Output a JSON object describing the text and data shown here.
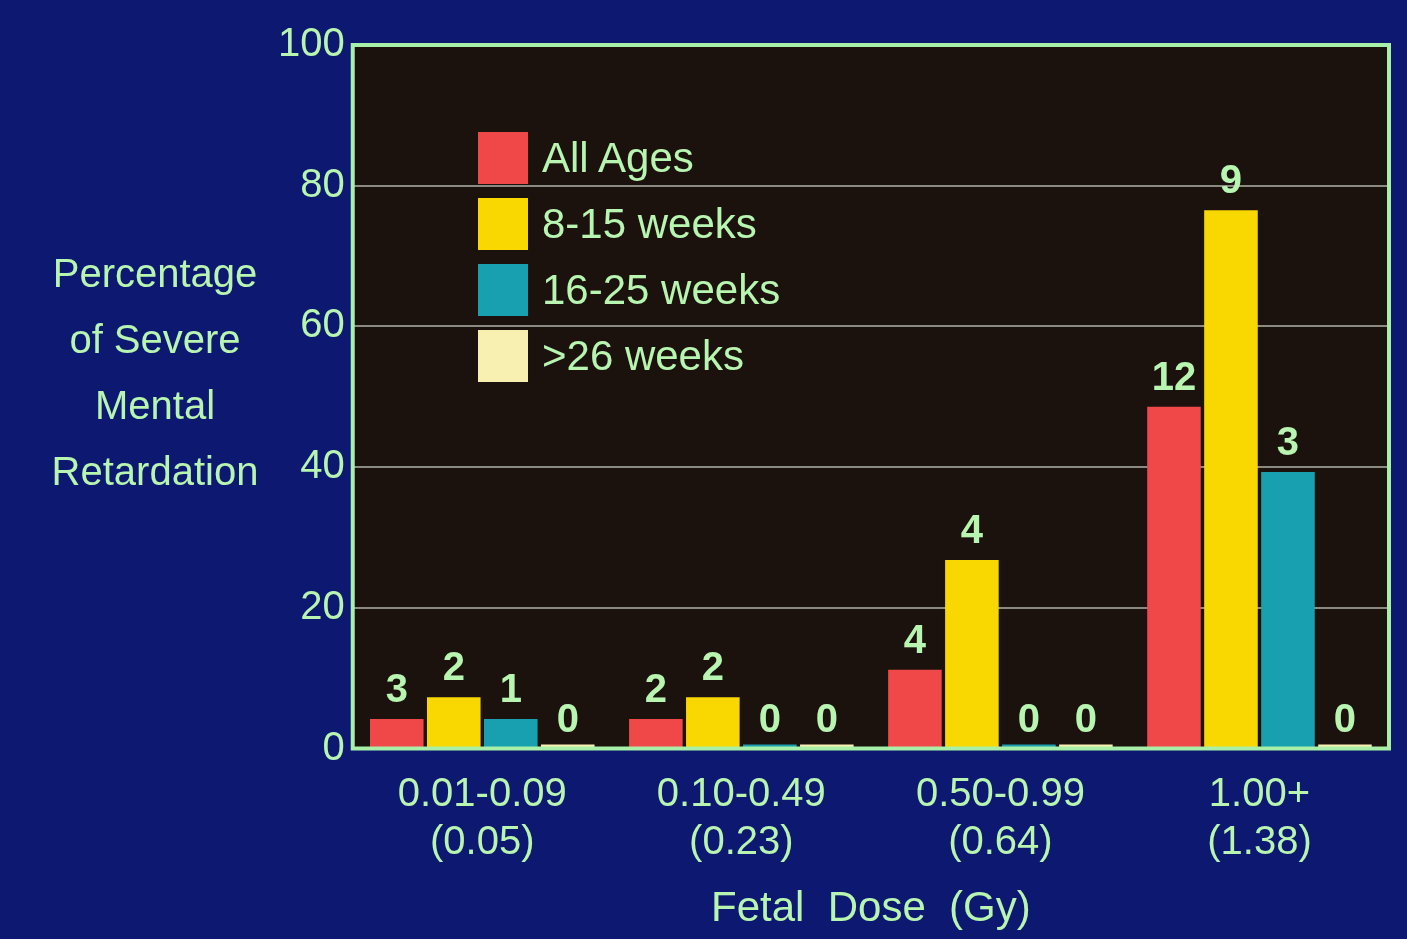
{
  "chart_data": {
    "type": "bar",
    "xlabel": "Fetal  Dose  (Gy)",
    "ylabel": "Percentage of Severe Mental Retardation",
    "categories": [
      "0.01-0.09\n(0.05)",
      "0.10-0.49\n(0.23)",
      "0.50-0.99\n(0.64)",
      "1.00+\n(1.38)"
    ],
    "series": [
      {
        "name": "All  Ages",
        "color": "#f04848",
        "values": [
          4.2,
          4.2,
          11.2,
          48.6
        ]
      },
      {
        "name": "8-15  weeks",
        "color": "#f8d800",
        "values": [
          7.3,
          7.3,
          26.8,
          76.5
        ]
      },
      {
        "name": "16-25  weeks",
        "color": "#18a0b0",
        "values": [
          4.2,
          0,
          0,
          39.3
        ]
      },
      {
        "name": ">26  weeks",
        "color": "#f8f0b0",
        "values": [
          0,
          0,
          0,
          0
        ]
      }
    ],
    "annotations": [
      {
        "text": "3",
        "x": "0.01-0.09\n(0.05)",
        "y": 4.2
      },
      {
        "text": "2",
        "x": "0.01-0.09\n(0.05)",
        "y": 7.3
      },
      {
        "text": "1",
        "x": "0.01-0.09\n(0.05)",
        "y": 4.2
      },
      {
        "text": "0",
        "x": "0.01-0.09\n(0.05)",
        "y": 0
      },
      {
        "text": "2",
        "x": "0.10-0.49\n(0.23)",
        "y": 4.2
      },
      {
        "text": "2",
        "x": "0.10-0.49\n(0.23)",
        "y": 7.3
      },
      {
        "text": "0",
        "x": "0.10-0.49\n(0.23)",
        "y": 0
      },
      {
        "text": "0",
        "x": "0.10-0.49\n(0.23)",
        "y": 0
      },
      {
        "text": "4",
        "x": "0.50-0.99\n(0.64)",
        "y": 11.2
      },
      {
        "text": "4",
        "x": "0.50-0.99\n(0.64)",
        "y": 26.8
      },
      {
        "text": "0",
        "x": "0.50-0.99\n(0.64)",
        "y": 0
      },
      {
        "text": "0",
        "x": "0.50-0.99\n(0.64)",
        "y": 0
      },
      {
        "text": "12",
        "x": "1.00+\n(1.38)",
        "y": 48.6
      },
      {
        "text": "9",
        "x": "1.00+\n(1.38)",
        "y": 76.5
      },
      {
        "text": "3",
        "x": "1.00+\n(1.38)",
        "y": 39.3
      },
      {
        "text": "0",
        "x": "1.00+\n(1.38)",
        "y": 0
      }
    ],
    "ylim": [
      0,
      100
    ],
    "yticks": [
      0,
      20,
      40,
      60,
      80,
      100
    ],
    "grid": "y",
    "legend": "top left"
  }
}
